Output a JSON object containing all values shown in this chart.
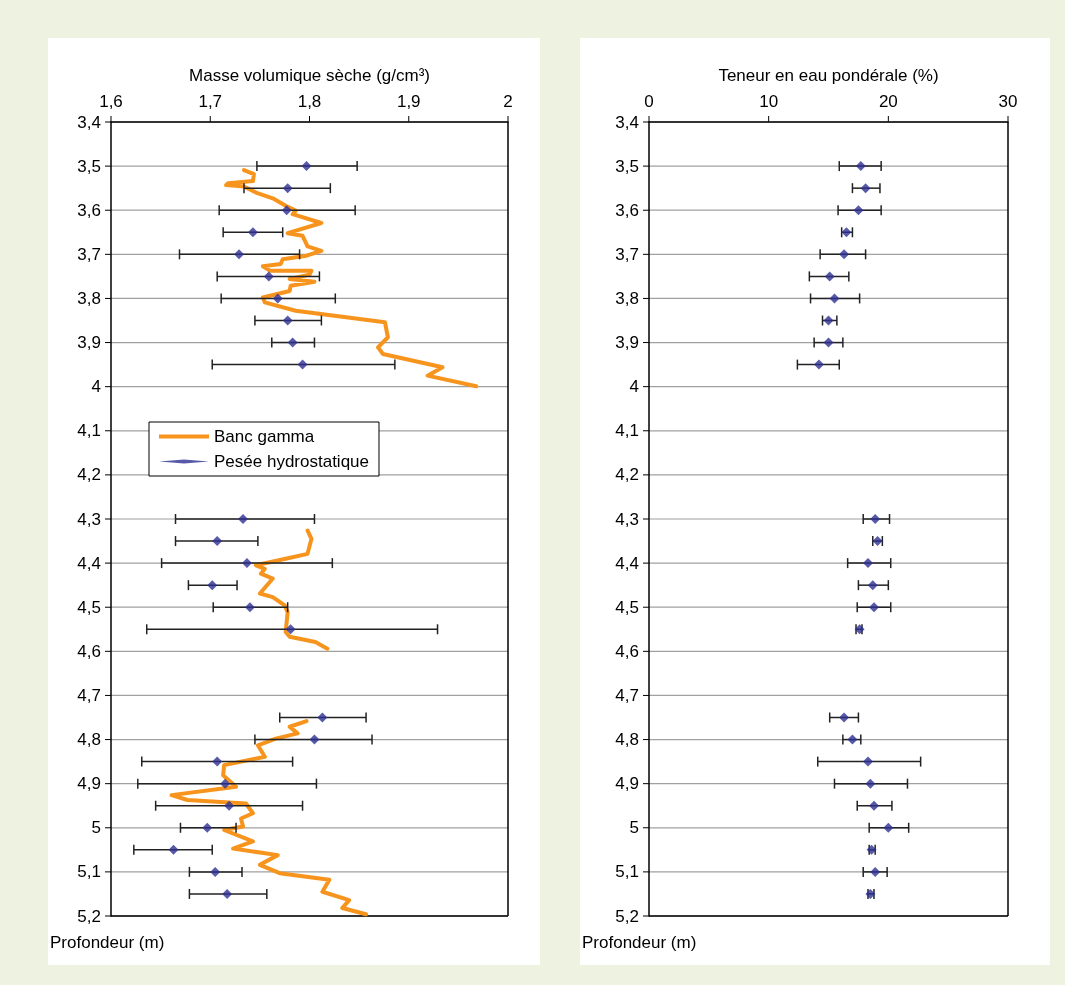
{
  "chart_data": [
    {
      "type": "scatter",
      "xlabel": "Masse volumique sèche (g/cm³)",
      "ylabel": "Profondeur (m)",
      "xlim": [
        1.6,
        2
      ],
      "xticks": [
        {
          "value": 1.6,
          "label": "1,6"
        },
        {
          "value": 1.7,
          "label": "1,7"
        },
        {
          "value": 1.8,
          "label": "1,8"
        },
        {
          "value": 1.9,
          "label": "1,9"
        },
        2
      ],
      "ylim": [
        5.2,
        3.4
      ],
      "yticks": [
        {
          "value": 3.4,
          "label": "3,4"
        },
        {
          "value": 3.5,
          "label": "3,5"
        },
        {
          "value": 3.6,
          "label": "3,6"
        },
        {
          "value": 3.7,
          "label": "3,7"
        },
        {
          "value": 3.8,
          "label": "3,8"
        },
        {
          "value": 3.9,
          "label": "3,9"
        },
        {
          "value": 4,
          "label": "4"
        },
        {
          "value": 4.1,
          "label": "4,1"
        },
        {
          "value": 4.2,
          "label": "4,2"
        },
        {
          "value": 4.3,
          "label": "4,3"
        },
        {
          "value": 4.4,
          "label": "4,4"
        },
        {
          "value": 4.5,
          "label": "4,5"
        },
        {
          "value": 4.6,
          "label": "4,6"
        },
        {
          "value": 4.7,
          "label": "4,7"
        },
        {
          "value": 4.8,
          "label": "4,8"
        },
        {
          "value": 4.9,
          "label": "4,9"
        },
        {
          "value": 5,
          "label": "5"
        },
        {
          "value": 5.1,
          "label": "5,1"
        },
        {
          "value": 5.2,
          "label": "5,2"
        }
      ],
      "grid": "y",
      "legend": "left",
      "series": [
        {
          "name": "Banc gamma",
          "type": "line",
          "color": "#f7941d",
          "marker": "none",
          "x": [
            1.734,
            1.744,
            1.743,
            1.718,
            1.716,
            1.734,
            1.746,
            1.763,
            1.776,
            1.786,
            1.783,
            1.812,
            1.778,
            1.793,
            1.797,
            1.798,
            1.812,
            1.797,
            1.773,
            1.771,
            1.753,
            1.76,
            1.802,
            1.8,
            1.78,
            1.805,
            1.781,
            1.78,
            1.753,
            1.755,
            1.786,
            1.876,
            1.879,
            1.869,
            1.874,
            1.934,
            1.919,
            1.968,
            null,
            1.798,
            1.802,
            1.798,
            1.776,
            1.746,
            1.755,
            1.751,
            1.763,
            1.75,
            1.763,
            1.775,
            1.778,
            1.776,
            1.78,
            1.806,
            1.818,
            null,
            1.797,
            1.78,
            1.788,
            1.766,
            1.748,
            1.755,
            1.714,
            1.713,
            1.726,
            1.661,
            1.677,
            1.736,
            1.743,
            1.731,
            1.733,
            1.714,
            1.743,
            1.723,
            1.768,
            1.75,
            1.77,
            1.82,
            1.813,
            1.84,
            1.833,
            1.857
          ],
          "values": [
            3.509,
            3.518,
            3.534,
            3.539,
            3.543,
            3.546,
            3.56,
            3.573,
            3.59,
            3.601,
            3.609,
            3.629,
            3.652,
            3.658,
            3.677,
            3.682,
            3.692,
            3.703,
            3.711,
            3.722,
            3.727,
            3.737,
            3.737,
            3.746,
            3.756,
            3.762,
            3.771,
            3.783,
            3.798,
            3.809,
            3.828,
            3.854,
            3.888,
            3.911,
            3.926,
            3.956,
            3.975,
            3.999,
            null,
            4.326,
            4.345,
            4.379,
            4.39,
            4.405,
            4.413,
            4.424,
            4.435,
            4.469,
            4.477,
            4.496,
            4.511,
            4.556,
            4.567,
            4.579,
            4.594,
            null,
            4.758,
            4.771,
            4.786,
            4.798,
            4.813,
            4.839,
            4.858,
            4.881,
            4.907,
            4.926,
            4.937,
            4.945,
            4.967,
            4.979,
            4.997,
            5.005,
            5.031,
            5.047,
            5.062,
            5.084,
            5.103,
            5.118,
            5.145,
            5.164,
            5.182,
            5.196
          ]
        },
        {
          "name": "Pesée hydrostatique",
          "type": "scatter",
          "color": "#2e3192",
          "marker": "diamond",
          "x": [
            1.797,
            1.778,
            1.777,
            1.743,
            1.729,
            1.759,
            1.768,
            1.778,
            1.783,
            1.793,
            1.733,
            1.707,
            1.737,
            1.702,
            1.74,
            1.781,
            1.813,
            1.805,
            1.707,
            1.715,
            1.719,
            1.697,
            1.663,
            1.705,
            1.717
          ],
          "values": [
            3.5,
            3.55,
            3.6,
            3.65,
            3.7,
            3.75,
            3.8,
            3.85,
            3.9,
            3.95,
            4.3,
            4.35,
            4.4,
            4.45,
            4.5,
            4.55,
            4.75,
            4.8,
            4.85,
            4.9,
            4.95,
            5,
            5.05,
            5.1,
            5.15
          ],
          "xerrors": [
            [
              1.747,
              1.848
            ],
            [
              1.734,
              1.821
            ],
            [
              1.709,
              1.846
            ],
            [
              1.713,
              1.773
            ],
            [
              1.669,
              1.79
            ],
            [
              1.707,
              1.81
            ],
            [
              1.711,
              1.826
            ],
            [
              1.745,
              1.812
            ],
            [
              1.762,
              1.805
            ],
            [
              1.702,
              1.886
            ],
            [
              1.665,
              1.805
            ],
            [
              1.665,
              1.748
            ],
            [
              1.651,
              1.823
            ],
            [
              1.678,
              1.727
            ],
            [
              1.703,
              1.778
            ],
            [
              1.636,
              1.929
            ],
            [
              1.77,
              1.857
            ],
            [
              1.745,
              1.863
            ],
            [
              1.631,
              1.783
            ],
            [
              1.627,
              1.807
            ],
            [
              1.645,
              1.793
            ],
            [
              1.67,
              1.726
            ],
            [
              1.623,
              1.702
            ],
            [
              1.679,
              1.732
            ],
            [
              1.679,
              1.757
            ]
          ]
        }
      ]
    },
    {
      "type": "scatter",
      "xlabel": "Teneur en eau pondérale (%)",
      "ylabel": "Profondeur (m)",
      "xlim": [
        0,
        30
      ],
      "xticks": [
        0,
        10,
        20,
        30
      ],
      "ylim": [
        5.2,
        3.4
      ],
      "yticks": [
        {
          "value": 3.4,
          "label": "3,4"
        },
        {
          "value": 3.5,
          "label": "3,5"
        },
        {
          "value": 3.6,
          "label": "3,6"
        },
        {
          "value": 3.7,
          "label": "3,7"
        },
        {
          "value": 3.8,
          "label": "3,8"
        },
        {
          "value": 3.9,
          "label": "3,9"
        },
        {
          "value": 4,
          "label": "4"
        },
        {
          "value": 4.1,
          "label": "4,1"
        },
        {
          "value": 4.2,
          "label": "4,2"
        },
        {
          "value": 4.3,
          "label": "4,3"
        },
        {
          "value": 4.4,
          "label": "4,4"
        },
        {
          "value": 4.5,
          "label": "4,5"
        },
        {
          "value": 4.6,
          "label": "4,6"
        },
        {
          "value": 4.7,
          "label": "4,7"
        },
        {
          "value": 4.8,
          "label": "4,8"
        },
        {
          "value": 4.9,
          "label": "4,9"
        },
        {
          "value": 5,
          "label": "5"
        },
        {
          "value": 5.1,
          "label": "5,1"
        },
        {
          "value": 5.2,
          "label": "5,2"
        }
      ],
      "grid": "y",
      "series": [
        {
          "type": "scatter",
          "color": "#2e3192",
          "marker": "diamond",
          "x": [
            17.7,
            18.1,
            17.5,
            16.5,
            16.3,
            15.1,
            15.5,
            15,
            15,
            14.2,
            18.9,
            19.1,
            18.3,
            18.7,
            18.8,
            17.6,
            16.3,
            17,
            18.3,
            18.5,
            18.8,
            20,
            18.6,
            18.9,
            18.5
          ],
          "values": [
            3.5,
            3.55,
            3.6,
            3.65,
            3.7,
            3.75,
            3.8,
            3.85,
            3.9,
            3.95,
            4.3,
            4.35,
            4.4,
            4.45,
            4.5,
            4.55,
            4.75,
            4.8,
            4.85,
            4.9,
            4.95,
            5,
            5.05,
            5.1,
            5.15
          ],
          "xerrors": [
            [
              15.9,
              19.4
            ],
            [
              17,
              19.3
            ],
            [
              15.8,
              19.4
            ],
            [
              16.1,
              17
            ],
            [
              14.3,
              18.1
            ],
            [
              13.4,
              16.7
            ],
            [
              13.5,
              17.6
            ],
            [
              14.5,
              15.7
            ],
            [
              13.8,
              16.2
            ],
            [
              12.4,
              15.9
            ],
            [
              17.9,
              20.1
            ],
            [
              18.7,
              19.5
            ],
            [
              16.6,
              20.2
            ],
            [
              17.5,
              20
            ],
            [
              17.4,
              20.2
            ],
            [
              17.3,
              17.8
            ],
            [
              15.1,
              17.5
            ],
            [
              16.2,
              17.7
            ],
            [
              14.1,
              22.7
            ],
            [
              15.5,
              21.6
            ],
            [
              17.4,
              20.3
            ],
            [
              18.4,
              21.7
            ],
            [
              18.4,
              18.9
            ],
            [
              17.9,
              19.9
            ],
            [
              18.3,
              18.8
            ]
          ]
        }
      ]
    }
  ]
}
